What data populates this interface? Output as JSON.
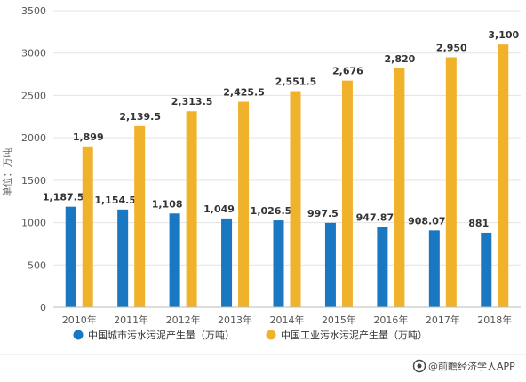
{
  "chart_data": {
    "type": "bar",
    "categories": [
      "2010年",
      "2011年",
      "2012年",
      "2013年",
      "2014年",
      "2015年",
      "2016年",
      "2017年",
      "2018年"
    ],
    "series": [
      {
        "name": "中国城市污水污泥产生量（万吨）",
        "color": "#1a78c2",
        "values": [
          1187.5,
          1154.5,
          1108,
          1049,
          1026.5,
          997.5,
          947.87,
          908.07,
          881
        ],
        "labels": [
          "1,187.5",
          "1,154.5",
          "1,108",
          "1,049",
          "1,026.5",
          "997.5",
          "947.87",
          "908.07",
          "881"
        ]
      },
      {
        "name": "中国工业污水污泥产生量（万吨）",
        "color": "#f0b22b",
        "values": [
          1899,
          2139.5,
          2313.5,
          2425.5,
          2551.5,
          2676,
          2820,
          2950,
          3100
        ],
        "labels": [
          "1,899",
          "2,139.5",
          "2,313.5",
          "2,425.5",
          "2,551.5",
          "2,676",
          "2,820",
          "2,950",
          "3,100"
        ]
      }
    ],
    "ylabel": "单位：万吨",
    "ylim": [
      0,
      3500
    ],
    "yticks": [
      0,
      500,
      1000,
      1500,
      2000,
      2500,
      3000,
      3500
    ],
    "grid": true,
    "legend": "bottom"
  },
  "footer": {
    "source": "@前瞻经济学人APP",
    "icon": "qianzhan-logo-icon"
  }
}
